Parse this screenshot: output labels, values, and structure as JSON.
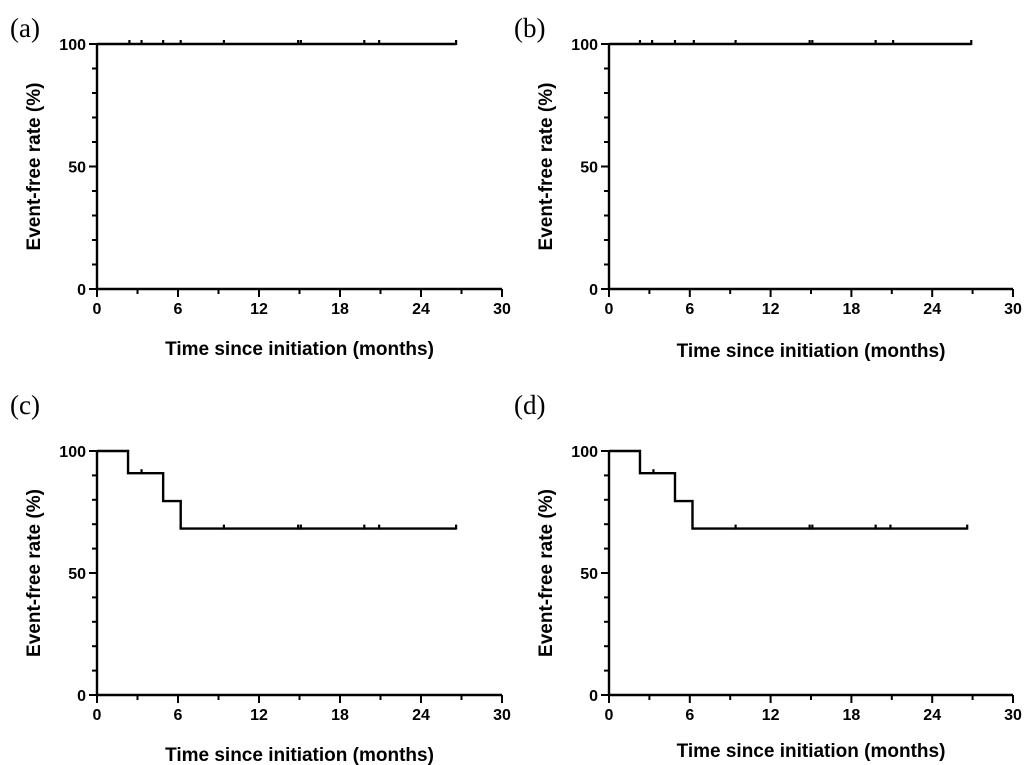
{
  "chart_data": [
    {
      "panel": "(a)",
      "type": "line",
      "subtype": "kaplan-meier-step",
      "xlabel": "Time since initiation (months)",
      "ylabel": "Event-free rate (%)",
      "xlim": [
        0,
        30
      ],
      "ylim": [
        0,
        100
      ],
      "xticks": [
        0,
        6,
        12,
        18,
        24,
        30
      ],
      "yticks": [
        0,
        50,
        100
      ],
      "grid": false,
      "series": [
        {
          "x": [
            0,
            26.6
          ],
          "y": [
            100,
            100
          ],
          "censored_x": [
            2.4,
            3.3,
            4.9,
            6.2,
            9.4,
            14.9,
            15.1,
            19.8,
            20.9,
            26.6
          ]
        }
      ]
    },
    {
      "panel": "(b)",
      "type": "line",
      "subtype": "kaplan-meier-step",
      "xlabel": "Time since initiation (months)",
      "ylabel": "Event-free rate (%)",
      "xlim": [
        0,
        30
      ],
      "ylim": [
        0,
        100
      ],
      "xticks": [
        0,
        6,
        12,
        18,
        24,
        30
      ],
      "yticks": [
        0,
        50,
        100
      ],
      "grid": false,
      "series": [
        {
          "x": [
            0,
            26.9
          ],
          "y": [
            100,
            100
          ],
          "censored_x": [
            2.3,
            3.2,
            4.9,
            6.3,
            9.4,
            14.9,
            15.1,
            19.8,
            21.1,
            26.9
          ]
        }
      ]
    },
    {
      "panel": "(c)",
      "type": "line",
      "subtype": "kaplan-meier-step",
      "xlabel": "Time since initiation (months)",
      "ylabel": "Event-free rate (%)",
      "xlim": [
        0,
        30
      ],
      "ylim": [
        0,
        100
      ],
      "xticks": [
        0,
        6,
        12,
        18,
        24,
        30
      ],
      "yticks": [
        0,
        50,
        100
      ],
      "grid": false,
      "series": [
        {
          "x": [
            0,
            2.3,
            4.9,
            6.2,
            26.6
          ],
          "y": [
            100,
            90.9,
            79.5,
            68.2,
            68.2
          ],
          "censored_x": [
            3.3,
            9.4,
            14.9,
            15.1,
            19.8,
            20.9,
            26.6
          ]
        }
      ]
    },
    {
      "panel": "(d)",
      "type": "line",
      "subtype": "kaplan-meier-step",
      "xlabel": "Time since initiation (months)",
      "ylabel": "Event-free rate (%)",
      "xlim": [
        0,
        30
      ],
      "ylim": [
        0,
        100
      ],
      "xticks": [
        0,
        6,
        12,
        18,
        24,
        30
      ],
      "yticks": [
        0,
        50,
        100
      ],
      "grid": false,
      "series": [
        {
          "x": [
            0,
            2.3,
            4.9,
            6.2,
            26.6
          ],
          "y": [
            100,
            90.9,
            79.5,
            68.2,
            68.2
          ],
          "censored_x": [
            3.3,
            9.4,
            14.9,
            15.1,
            19.8,
            20.9,
            26.6
          ]
        }
      ]
    }
  ]
}
